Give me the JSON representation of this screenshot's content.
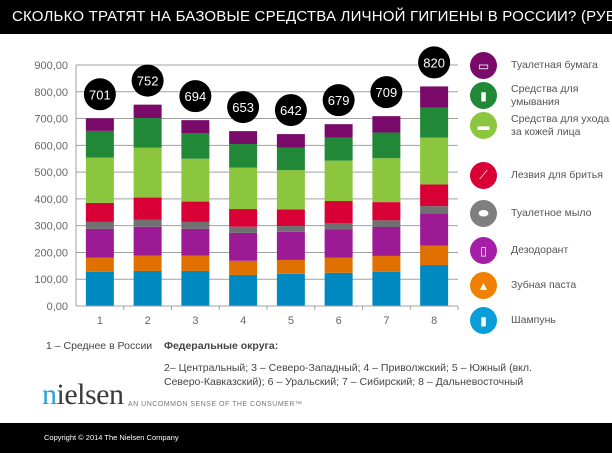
{
  "title": "СКОЛЬКО ТРАТЯТ НА БАЗОВЫЕ СРЕДСТВА ЛИЧНОЙ ГИГИЕНЫ В РОССИИ? (РУБ.)",
  "chart_data": {
    "type": "bar",
    "stacked": true,
    "title": "СКОЛЬКО ТРАТЯТ НА БАЗОВЫЕ СРЕДСТВА ЛИЧНОЙ ГИГИЕНЫ В РОССИИ? (РУБ.)",
    "categories": [
      "1",
      "2",
      "3",
      "4",
      "5",
      "6",
      "7",
      "8"
    ],
    "totals": [
      701,
      752,
      694,
      653,
      642,
      679,
      709,
      820
    ],
    "ylim": [
      0,
      900
    ],
    "yticks": [
      "0,00",
      "100,00",
      "200,00",
      "300,00",
      "400,00",
      "500,00",
      "600,00",
      "700,00",
      "800,00",
      "900,00"
    ],
    "grid": true,
    "legend_position": "right",
    "series": [
      {
        "name": "Шампунь",
        "color": "#0089c0",
        "values": [
          128,
          131,
          131,
          116,
          120,
          124,
          128,
          153
        ]
      },
      {
        "name": "Зубная паста",
        "color": "#e07000",
        "values": [
          53,
          57,
          57,
          53,
          52,
          56,
          59,
          72
        ]
      },
      {
        "name": "Дезодорант",
        "color": "#9c1a96",
        "values": [
          107,
          108,
          100,
          104,
          105,
          107,
          108,
          121
        ]
      },
      {
        "name": "Туалетное мыло",
        "color": "#707070",
        "values": [
          26,
          27,
          26,
          23,
          22,
          23,
          25,
          27
        ]
      },
      {
        "name": "Лезвия для бритья",
        "color": "#d90036",
        "values": [
          71,
          82,
          76,
          66,
          62,
          82,
          68,
          81
        ]
      },
      {
        "name": "Средства для ухода за кожей лица",
        "color": "#8cc63f",
        "values": [
          169,
          186,
          160,
          155,
          146,
          151,
          164,
          175
        ]
      },
      {
        "name": "Средства для умывания",
        "color": "#218838",
        "values": [
          100,
          111,
          96,
          88,
          85,
          86,
          96,
          112
        ]
      },
      {
        "name": "Туалетная бумага",
        "color": "#7a0a6a",
        "values": [
          47,
          50,
          48,
          48,
          50,
          50,
          61,
          79
        ]
      }
    ]
  },
  "legend": [
    {
      "label": "Туалетная бумага",
      "color": "#7a0a6a",
      "icon": "toilet-paper-icon",
      "glyph": "▭"
    },
    {
      "label": "Средства для умывания",
      "color": "#218838",
      "icon": "tube-icon",
      "glyph": "▮"
    },
    {
      "label": "Средства для ухода за кожей лица",
      "color": "#8cc63f",
      "icon": "cream-jar-icon",
      "glyph": "▬"
    },
    {
      "label": "Лезвия для бритья",
      "color": "#d90036",
      "icon": "razor-icon",
      "glyph": "⟋"
    },
    {
      "label": "Туалетное мыло",
      "color": "#7f7f7f",
      "icon": "soap-icon",
      "glyph": "⬬"
    },
    {
      "label": "Дезодорант",
      "color": "#a51ea8",
      "icon": "deodorant-icon",
      "glyph": "▯"
    },
    {
      "label": "Зубная паста",
      "color": "#f08000",
      "icon": "toothpaste-icon",
      "glyph": "▲"
    },
    {
      "label": "Шампунь",
      "color": "#0a9ed8",
      "icon": "shampoo-bottle-icon",
      "glyph": "▮"
    }
  ],
  "notes": {
    "avg": "1 – Среднее в России",
    "districts_heading": "Федеральные округа:",
    "line1": "2– Центральный; 3 – Северо-Западный; 4 – Приволжский; 5 – Южный (вкл.",
    "line2": "Северо-Кавказский); 6 – Уральский; 7 – Сибирский;  8 – Дальневосточный"
  },
  "brand": {
    "logo": "nielsen",
    "tagline": "AN UNCOMMON SENSE OF THE CONSUMER™"
  },
  "footer": {
    "copyright": "Copyright © 2014 The Nielsen Company"
  }
}
